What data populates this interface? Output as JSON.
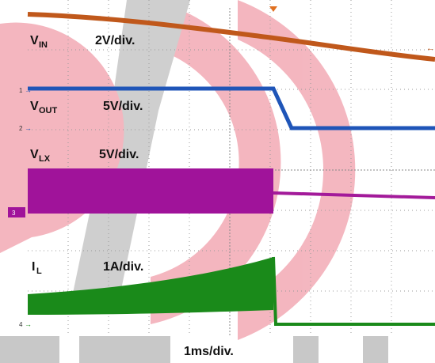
{
  "channels": [
    {
      "marker": null,
      "name": {
        "main": "V",
        "sub": "IN"
      },
      "scale": "2V/div."
    },
    {
      "marker": "1",
      "name": {
        "main": "V",
        "sub": "OUT"
      },
      "scale": "5V/div."
    },
    {
      "marker": "2",
      "name": {
        "main": "V",
        "sub": "LX"
      },
      "scale": "5V/div."
    },
    {
      "marker": "3",
      "name": {
        "main": "I",
        "sub": "L"
      },
      "scale": "1A/div."
    }
  ],
  "extra_marker": "4",
  "timebase": "1ms/div."
}
